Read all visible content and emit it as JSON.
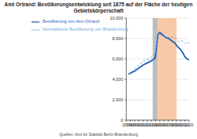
{
  "chart_data": {
    "type": "line",
    "title": "Amt Ortrand: Bevölkerungsentwicklung seit 1875 auf der Fläche der heutigen Gebietskörperschaft",
    "source": "Quellen: Amt für Statistik Berlin-Brandenburg",
    "x": [
      1875,
      1890,
      1900,
      1910,
      1925,
      1933,
      1939,
      1946,
      1950,
      1964,
      1971,
      1981,
      1985,
      1989,
      1990,
      1995,
      2000,
      2005,
      2010,
      2015,
      2020
    ],
    "series": [
      {
        "name": "Bevölkerung von Amt Ortrand",
        "color": "#1f5fb0",
        "line_style": "solid",
        "values": [
          4500,
          4800,
          5100,
          5400,
          5700,
          5900,
          6100,
          8400,
          8600,
          8100,
          8000,
          7700,
          7600,
          7400,
          7300,
          7100,
          6900,
          6600,
          6200,
          6000,
          5900
        ]
      },
      {
        "name": "Normalisierte Bevölkerung von Brandenburg",
        "color": "#6fa8dc",
        "line_style": "dashed",
        "values": [
          4500,
          5000,
          5400,
          5800,
          6000,
          6300,
          6500,
          8300,
          8400,
          8100,
          8100,
          8100,
          8100,
          8000,
          7900,
          7700,
          7800,
          7700,
          7500,
          7600,
          7600
        ]
      }
    ],
    "periods": [
      {
        "start": 1933,
        "end": 1945,
        "color": "#bdbdbd"
      },
      {
        "start": 1945,
        "end": 1990,
        "color": "#f8c8a8"
      }
    ],
    "xlim": [
      1870,
      2020
    ],
    "xticks": [
      1870,
      1880,
      1890,
      1900,
      1910,
      1920,
      1930,
      1940,
      1950,
      1960,
      1970,
      1980,
      1990,
      2000,
      2010,
      2020
    ],
    "ylim": [
      0,
      10000
    ],
    "yticks": [
      0,
      {
        "value": 2000,
        "label": "2,000"
      },
      {
        "value": 4000,
        "label": "4,000"
      },
      {
        "value": 6000,
        "label": "6,000"
      },
      {
        "value": 8000,
        "label": "8,000"
      },
      {
        "value": 10000,
        "label": "10,000"
      }
    ],
    "grid": true,
    "legend": "upper left"
  }
}
